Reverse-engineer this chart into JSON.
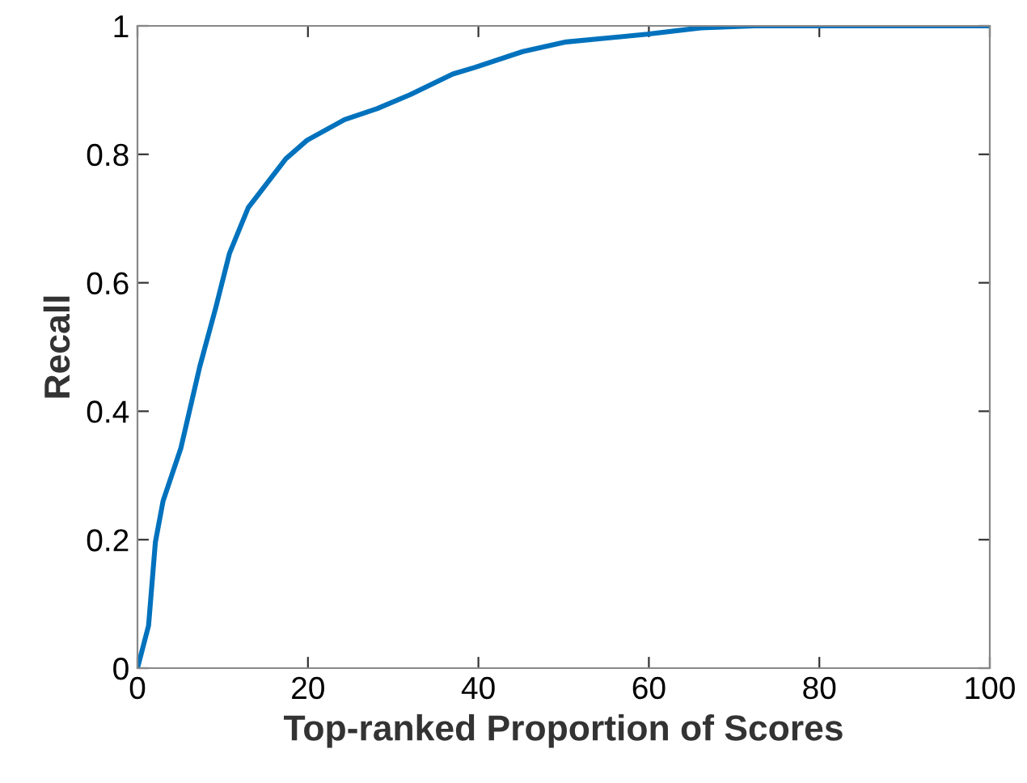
{
  "chart_data": {
    "type": "line",
    "xlabel": "Top-ranked Proportion of Scores",
    "ylabel": "Recall",
    "xlim": [
      0,
      100
    ],
    "xticks": [
      0,
      20,
      40,
      60,
      80,
      100
    ],
    "ylim": [
      0,
      1
    ],
    "yticks": [
      0,
      0.2,
      0.4,
      0.6,
      0.8,
      1
    ],
    "grid": false,
    "legend": false,
    "series": [
      {
        "color": "#0072bd",
        "x": [
          0,
          1.3,
          2.1,
          3.0,
          5.1,
          7.3,
          9.2,
          10.8,
          13.0,
          17.4,
          19.9,
          24.3,
          28.1,
          32.0,
          37.0,
          39.5,
          45.2,
          50.3,
          59.8,
          66.1,
          72.4,
          80,
          100
        ],
        "values": [
          0,
          0.066,
          0.196,
          0.26,
          0.343,
          0.469,
          0.562,
          0.646,
          0.717,
          0.793,
          0.822,
          0.854,
          0.871,
          0.893,
          0.925,
          0.935,
          0.96,
          0.975,
          0.987,
          0.997,
          1.0,
          1.0,
          1.0
        ]
      }
    ]
  }
}
